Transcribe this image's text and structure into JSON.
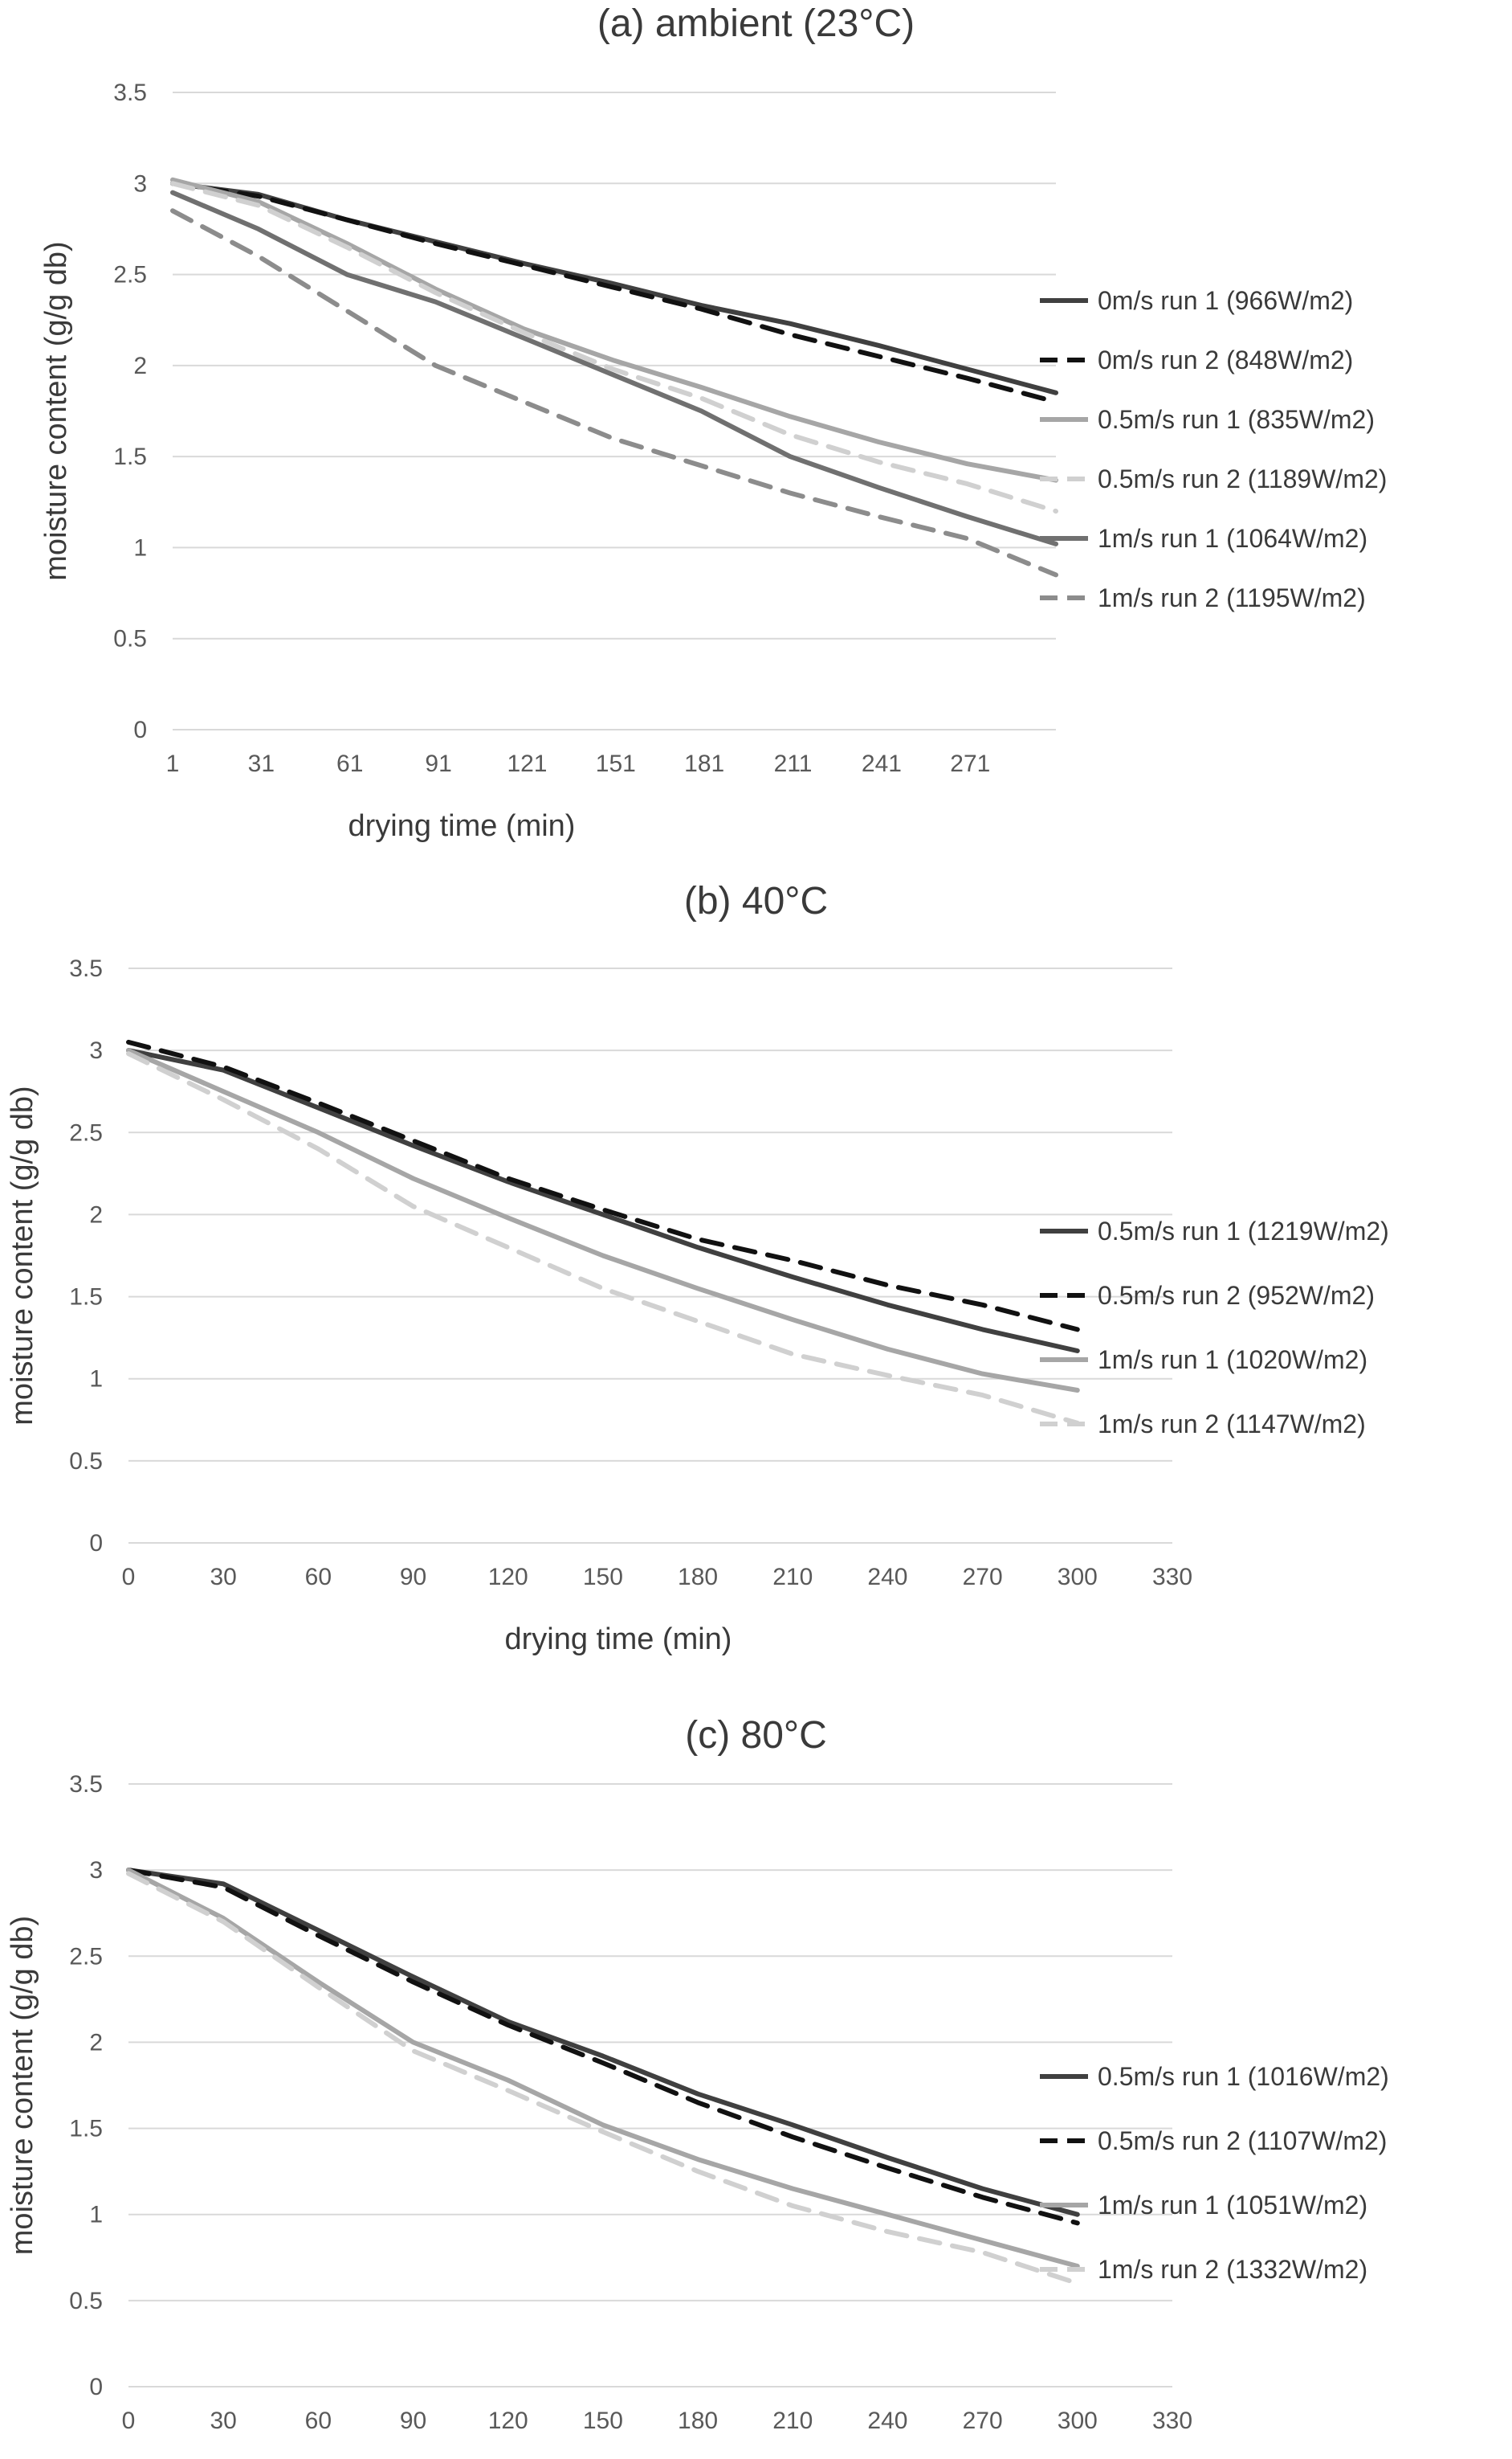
{
  "chart_data": [
    {
      "type": "line",
      "title": "(a) ambient (23°C)",
      "xlabel": "drying time (min)",
      "ylabel": "moisture content (g/g db)",
      "ylim": [
        0,
        3.5
      ],
      "xlim": [
        1,
        300
      ],
      "x_ticks": [
        1,
        31,
        61,
        91,
        121,
        151,
        181,
        211,
        241,
        271
      ],
      "y_ticks": [
        0,
        0.5,
        1,
        1.5,
        2,
        2.5,
        3,
        3.5
      ],
      "grid": true,
      "legend": "right",
      "series": [
        {
          "name": "0m/s run 1 (966W/m2)",
          "color": "#404040",
          "dash": false,
          "x": [
            1,
            30,
            60,
            90,
            120,
            150,
            180,
            210,
            240,
            270,
            300
          ],
          "y": [
            3.0,
            2.94,
            2.8,
            2.68,
            2.56,
            2.45,
            2.33,
            2.23,
            2.11,
            1.98,
            1.85
          ]
        },
        {
          "name": "0m/s run 2 (848W/m2)",
          "color": "#111111",
          "dash": true,
          "x": [
            1,
            30,
            60,
            90,
            120,
            150,
            180,
            210,
            240,
            270,
            300
          ],
          "y": [
            3.0,
            2.93,
            2.8,
            2.67,
            2.55,
            2.43,
            2.31,
            2.17,
            2.05,
            1.93,
            1.8
          ]
        },
        {
          "name": "0.5m/s run 1 (835W/m2)",
          "color": "#a6a6a6",
          "dash": false,
          "x": [
            1,
            30,
            60,
            90,
            120,
            150,
            180,
            210,
            240,
            270,
            300
          ],
          "y": [
            3.02,
            2.9,
            2.67,
            2.42,
            2.2,
            2.03,
            1.88,
            1.72,
            1.58,
            1.46,
            1.37
          ]
        },
        {
          "name": "0.5m/s run 2 (1189W/m2)",
          "color": "#d0d0d0",
          "dash": true,
          "x": [
            1,
            30,
            60,
            90,
            120,
            150,
            180,
            210,
            240,
            270,
            300
          ],
          "y": [
            3.0,
            2.88,
            2.65,
            2.4,
            2.18,
            1.98,
            1.82,
            1.62,
            1.47,
            1.35,
            1.2
          ]
        },
        {
          "name": "1m/s run 1 (1064W/m2)",
          "color": "#707070",
          "dash": false,
          "x": [
            1,
            30,
            60,
            90,
            120,
            150,
            180,
            210,
            240,
            270,
            300
          ],
          "y": [
            2.95,
            2.75,
            2.5,
            2.35,
            2.15,
            1.95,
            1.75,
            1.5,
            1.33,
            1.17,
            1.02
          ]
        },
        {
          "name": "1m/s run 2 (1195W/m2)",
          "color": "#8c8c8c",
          "dash": true,
          "x": [
            1,
            30,
            60,
            90,
            120,
            150,
            180,
            210,
            240,
            270,
            300
          ],
          "y": [
            2.85,
            2.6,
            2.3,
            2.0,
            1.8,
            1.6,
            1.45,
            1.3,
            1.17,
            1.05,
            0.85
          ]
        }
      ]
    },
    {
      "type": "line",
      "title": "(b) 40°C",
      "xlabel": "drying time (min)",
      "ylabel": "moisture content (g/g db)",
      "ylim": [
        0,
        3.5
      ],
      "xlim": [
        0,
        330
      ],
      "x_ticks": [
        0,
        30,
        60,
        90,
        120,
        150,
        180,
        210,
        240,
        270,
        300,
        330
      ],
      "y_ticks": [
        0,
        0.5,
        1,
        1.5,
        2,
        2.5,
        3,
        3.5
      ],
      "grid": true,
      "legend": "right",
      "series": [
        {
          "name": "0.5m/s run 1 (1219W/m2)",
          "color": "#404040",
          "dash": false,
          "x": [
            0,
            30,
            60,
            90,
            120,
            150,
            180,
            210,
            240,
            270,
            300
          ],
          "y": [
            3.0,
            2.88,
            2.65,
            2.42,
            2.2,
            2.0,
            1.8,
            1.62,
            1.45,
            1.3,
            1.17
          ]
        },
        {
          "name": "0.5m/s run 2 (952W/m2)",
          "color": "#111111",
          "dash": true,
          "x": [
            0,
            30,
            60,
            90,
            120,
            150,
            180,
            210,
            240,
            270,
            300
          ],
          "y": [
            3.05,
            2.9,
            2.68,
            2.45,
            2.22,
            2.03,
            1.85,
            1.72,
            1.57,
            1.45,
            1.3
          ]
        },
        {
          "name": "1m/s run 1 (1020W/m2)",
          "color": "#a6a6a6",
          "dash": false,
          "x": [
            0,
            30,
            60,
            90,
            120,
            150,
            180,
            210,
            240,
            270,
            300
          ],
          "y": [
            3.0,
            2.75,
            2.5,
            2.22,
            1.98,
            1.75,
            1.55,
            1.36,
            1.18,
            1.03,
            0.93
          ]
        },
        {
          "name": "1m/s run 2 (1147W/m2)",
          "color": "#d0d0d0",
          "dash": true,
          "x": [
            0,
            30,
            60,
            90,
            120,
            150,
            180,
            210,
            240,
            270,
            300
          ],
          "y": [
            2.98,
            2.7,
            2.4,
            2.05,
            1.8,
            1.55,
            1.35,
            1.15,
            1.02,
            0.9,
            0.73
          ]
        }
      ]
    },
    {
      "type": "line",
      "title": "(c) 80°C",
      "xlabel": "drying time (min)",
      "ylabel": "moisture content (g/g db)",
      "ylim": [
        0,
        3.5
      ],
      "xlim": [
        0,
        330
      ],
      "x_ticks": [
        0,
        30,
        60,
        90,
        120,
        150,
        180,
        210,
        240,
        270,
        300,
        330
      ],
      "y_ticks": [
        0,
        0.5,
        1,
        1.5,
        2,
        2.5,
        3,
        3.5
      ],
      "grid": true,
      "legend": "right",
      "series": [
        {
          "name": "0.5m/s run 1 (1016W/m2)",
          "color": "#404040",
          "dash": false,
          "x": [
            0,
            30,
            60,
            90,
            120,
            150,
            180,
            210,
            240,
            270,
            300
          ],
          "y": [
            3.0,
            2.92,
            2.65,
            2.38,
            2.12,
            1.92,
            1.7,
            1.52,
            1.33,
            1.15,
            1.0
          ]
        },
        {
          "name": "0.5m/s run 2 (1107W/m2)",
          "color": "#111111",
          "dash": true,
          "x": [
            0,
            30,
            60,
            90,
            120,
            150,
            180,
            210,
            240,
            270,
            300
          ],
          "y": [
            3.0,
            2.9,
            2.62,
            2.35,
            2.1,
            1.88,
            1.65,
            1.45,
            1.27,
            1.1,
            0.95
          ]
        },
        {
          "name": "1m/s run 1 (1051W/m2)",
          "color": "#a6a6a6",
          "dash": false,
          "x": [
            0,
            30,
            60,
            90,
            120,
            150,
            180,
            210,
            240,
            270,
            300
          ],
          "y": [
            3.0,
            2.72,
            2.35,
            2.0,
            1.78,
            1.52,
            1.32,
            1.15,
            1.0,
            0.85,
            0.7
          ]
        },
        {
          "name": "1m/s run 2 (1332W/m2)",
          "color": "#d0d0d0",
          "dash": true,
          "x": [
            0,
            30,
            60,
            90,
            120,
            150,
            180,
            210,
            240,
            270,
            300
          ],
          "y": [
            2.98,
            2.7,
            2.32,
            1.95,
            1.72,
            1.48,
            1.25,
            1.05,
            0.9,
            0.78,
            0.6
          ]
        }
      ]
    }
  ]
}
